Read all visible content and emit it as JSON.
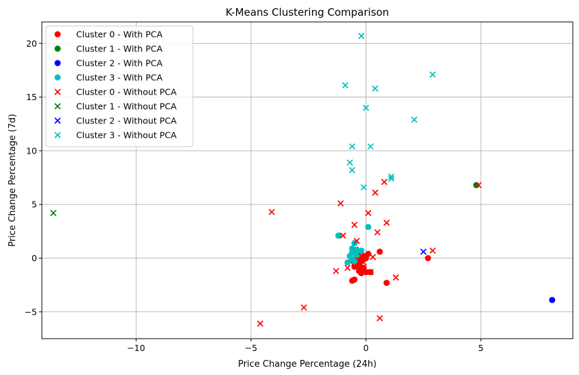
{
  "chart_data": {
    "type": "scatter",
    "title": "K-Means Clustering Comparison",
    "xlabel": "Price Change Percentage (24h)",
    "ylabel": "Price Change Percentage (7d)",
    "xlim": [
      -14.1,
      9.0
    ],
    "ylim": [
      -7.5,
      22.0
    ],
    "xticks": [
      -10,
      -5,
      0,
      5
    ],
    "yticks": [
      -5,
      0,
      5,
      10,
      15,
      20
    ],
    "grid": true,
    "legend_position": "top-left",
    "series": [
      {
        "name": "Cluster 0 - With PCA",
        "marker": "circle",
        "color": "#ff0000",
        "points": [
          [
            -0.6,
            -2.1
          ],
          [
            -0.5,
            -2.0
          ],
          [
            0.9,
            -2.3
          ],
          [
            0.0,
            -1.3
          ],
          [
            0.2,
            -1.3
          ],
          [
            -0.2,
            -1.4
          ],
          [
            -0.3,
            -1.2
          ],
          [
            -0.5,
            -0.8
          ],
          [
            -0.3,
            -0.6
          ],
          [
            -0.1,
            -0.9
          ],
          [
            -0.4,
            -0.3
          ],
          [
            -0.2,
            -0.1
          ],
          [
            0.0,
            0.0
          ],
          [
            -0.6,
            -0.2
          ],
          [
            -0.5,
            -0.5
          ],
          [
            -0.3,
            -0.8
          ],
          [
            0.1,
            0.4
          ],
          [
            0.6,
            0.6
          ],
          [
            2.7,
            0.0
          ],
          [
            -0.1,
            0.2
          ],
          [
            -0.4,
            0.1
          ],
          [
            -0.2,
            -0.2
          ]
        ]
      },
      {
        "name": "Cluster 1 - With PCA",
        "marker": "circle",
        "color": "#008000",
        "points": [
          [
            4.8,
            6.8
          ]
        ]
      },
      {
        "name": "Cluster 2 - With PCA",
        "marker": "circle",
        "color": "#0000ff",
        "points": [
          [
            8.1,
            -3.9
          ]
        ]
      },
      {
        "name": "Cluster 3 - With PCA",
        "marker": "circle",
        "color": "#00bfbf",
        "points": [
          [
            -1.2,
            2.1
          ],
          [
            0.1,
            2.9
          ],
          [
            -0.5,
            1.4
          ],
          [
            -0.6,
            0.9
          ],
          [
            -0.4,
            0.8
          ],
          [
            -0.2,
            0.7
          ],
          [
            -0.6,
            0.5
          ],
          [
            -0.4,
            0.3
          ],
          [
            -0.7,
            0.2
          ],
          [
            -0.3,
            0.4
          ],
          [
            -0.6,
            -0.1
          ],
          [
            -0.8,
            -0.4
          ],
          [
            -0.5,
            -0.3
          ]
        ]
      },
      {
        "name": "Cluster 0 - Without PCA",
        "marker": "x",
        "color": "#ff0000",
        "points": [
          [
            -4.1,
            4.3
          ],
          [
            -1.1,
            5.1
          ],
          [
            0.4,
            6.1
          ],
          [
            0.8,
            7.1
          ],
          [
            0.1,
            4.2
          ],
          [
            -0.5,
            3.1
          ],
          [
            0.9,
            3.3
          ],
          [
            0.5,
            2.4
          ],
          [
            -0.4,
            1.6
          ],
          [
            -1.0,
            2.1
          ],
          [
            2.9,
            0.7
          ],
          [
            4.9,
            6.8
          ],
          [
            1.3,
            -1.8
          ],
          [
            -1.3,
            -1.2
          ],
          [
            0.2,
            -1.3
          ],
          [
            -0.8,
            -0.9
          ],
          [
            0.3,
            0.1
          ],
          [
            -0.1,
            -0.4
          ],
          [
            0.6,
            -5.6
          ],
          [
            -2.7,
            -4.6
          ],
          [
            -4.6,
            -6.1
          ],
          [
            -0.2,
            0.2
          ]
        ]
      },
      {
        "name": "Cluster 1 - Without PCA",
        "marker": "x",
        "color": "#008000",
        "points": [
          [
            -13.6,
            4.2
          ]
        ]
      },
      {
        "name": "Cluster 2 - Without PCA",
        "marker": "x",
        "color": "#0000ff",
        "points": [
          [
            2.5,
            0.6
          ]
        ]
      },
      {
        "name": "Cluster 3 - Without PCA",
        "marker": "x",
        "color": "#00bfbf",
        "points": [
          [
            -0.2,
            20.7
          ],
          [
            2.9,
            17.1
          ],
          [
            -0.9,
            16.1
          ],
          [
            0.4,
            15.8
          ],
          [
            0.0,
            14.0
          ],
          [
            2.1,
            12.9
          ],
          [
            -0.6,
            10.4
          ],
          [
            0.2,
            10.4
          ],
          [
            -0.7,
            8.9
          ],
          [
            -0.6,
            8.2
          ],
          [
            1.1,
            7.6
          ],
          [
            1.1,
            7.4
          ],
          [
            -0.1,
            6.6
          ]
        ]
      }
    ]
  }
}
